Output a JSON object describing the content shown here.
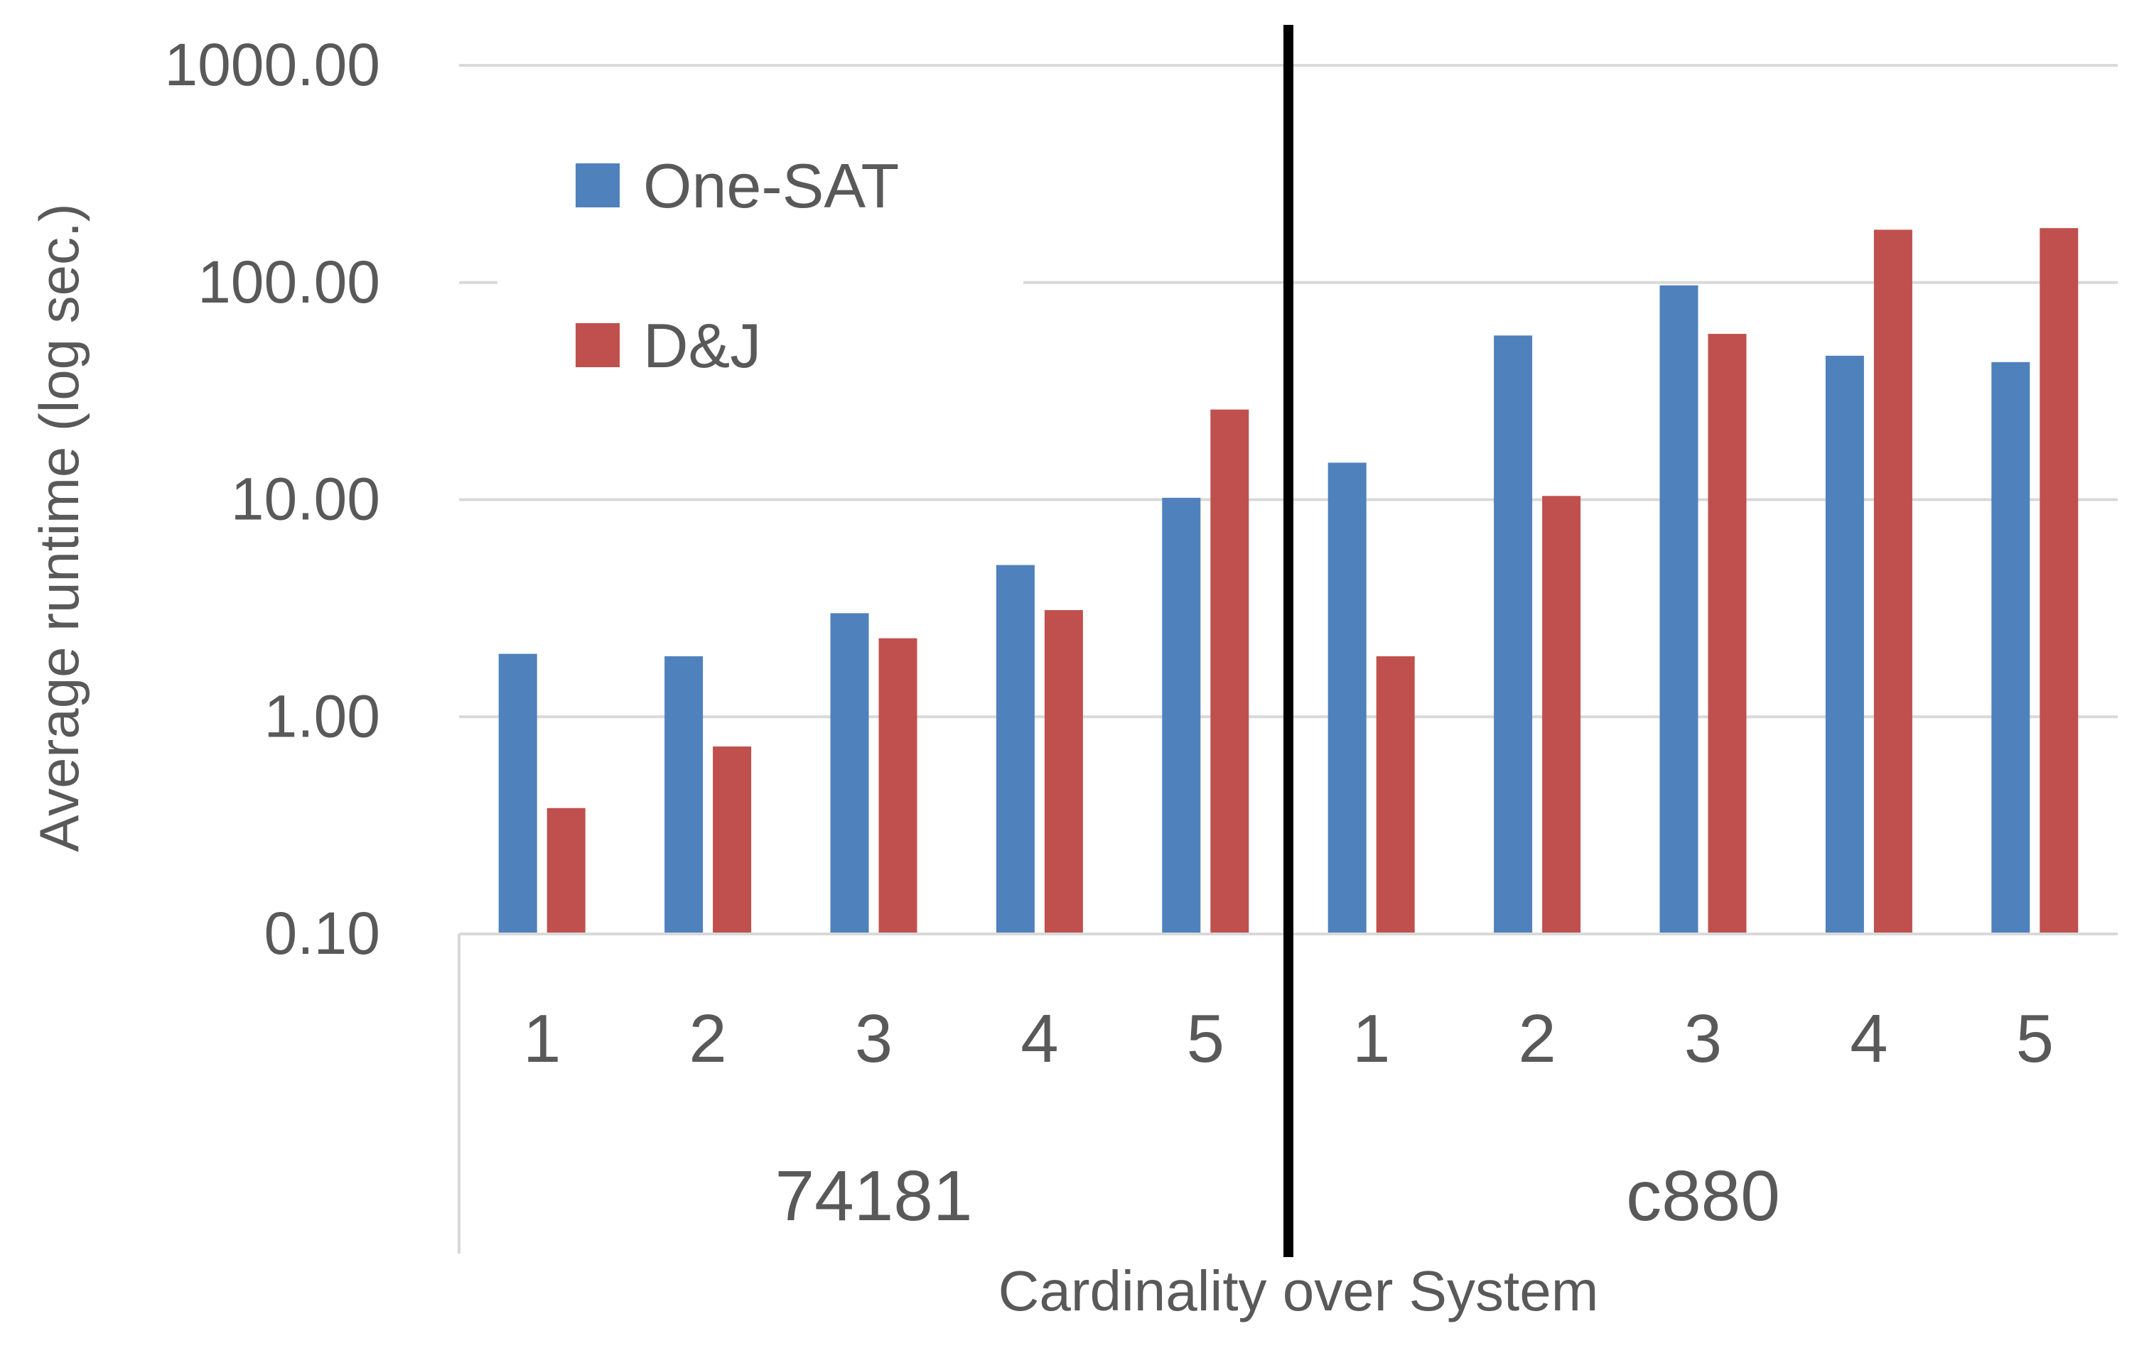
{
  "chart_data": {
    "type": "bar",
    "title": "",
    "xlabel": "Cardinality over System",
    "ylabel": "Average runtime (log sec.)",
    "yscale": "log",
    "ylim": [
      0.1,
      1000
    ],
    "yticks": [
      "0.10",
      "1.00",
      "10.00",
      "100.00",
      "1000.00"
    ],
    "ytick_values": [
      0.1,
      1,
      10,
      100,
      1000
    ],
    "grid": true,
    "legend_position": "top-left",
    "groups": [
      {
        "label": "74181",
        "categories": [
          "1",
          "2",
          "3",
          "4",
          "5"
        ]
      },
      {
        "label": "c880",
        "categories": [
          "1",
          "2",
          "3",
          "4",
          "5"
        ]
      }
    ],
    "series": [
      {
        "name": "One-SAT",
        "color": "#4F81BD",
        "values": [
          1.95,
          1.9,
          3.0,
          5.0,
          10.2,
          14.8,
          57,
          97,
          46,
          43
        ]
      },
      {
        "name": "D&J",
        "color": "#C0504D",
        "values": [
          0.38,
          0.73,
          2.3,
          3.1,
          26,
          1.9,
          10.4,
          58,
          175,
          178
        ]
      }
    ],
    "colors": {
      "grid": "#d9d9d9",
      "axis": "#d9d9d9",
      "separator": "#000000",
      "text": "#595959"
    }
  }
}
